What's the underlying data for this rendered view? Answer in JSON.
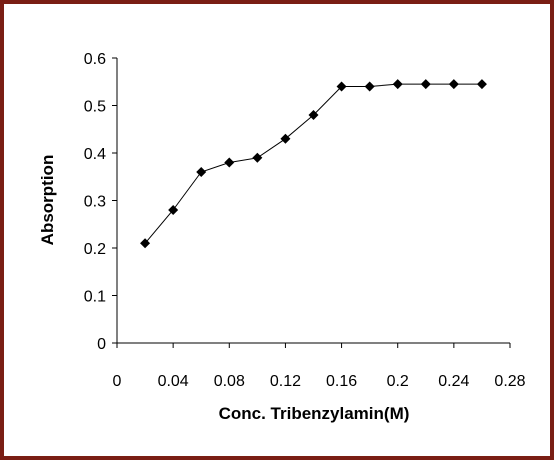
{
  "chart_data": {
    "type": "line",
    "title": "",
    "xlabel": "Conc. Tribenzylamin(M)",
    "ylabel": "Absorption",
    "xlim": [
      0,
      0.28
    ],
    "ylim": [
      0,
      0.6
    ],
    "x_ticks": [
      "0",
      "0.04",
      "0.08",
      "0.12",
      "0.16",
      "0.2",
      "0.24",
      "0.28"
    ],
    "y_ticks": [
      "0",
      "0.1",
      "0.2",
      "0.3",
      "0.4",
      "0.5",
      "0.6"
    ],
    "x_tick_values": [
      0,
      0.04,
      0.08,
      0.12,
      0.16,
      0.2,
      0.24,
      0.28
    ],
    "y_tick_values": [
      0,
      0.1,
      0.2,
      0.3,
      0.4,
      0.5,
      0.6
    ],
    "grid": false,
    "legend": "none",
    "series": [
      {
        "marker": "diamond",
        "color": "#000000",
        "x": [
          0.02,
          0.04,
          0.06,
          0.08,
          0.1,
          0.12,
          0.14,
          0.16,
          0.18,
          0.2,
          0.22,
          0.24,
          0.26
        ],
        "y": [
          0.21,
          0.28,
          0.36,
          0.38,
          0.39,
          0.43,
          0.48,
          0.54,
          0.54,
          0.545,
          0.545,
          0.545,
          0.545
        ]
      }
    ]
  },
  "colors": {
    "frame": "#7a1e14",
    "line": "#000000"
  }
}
